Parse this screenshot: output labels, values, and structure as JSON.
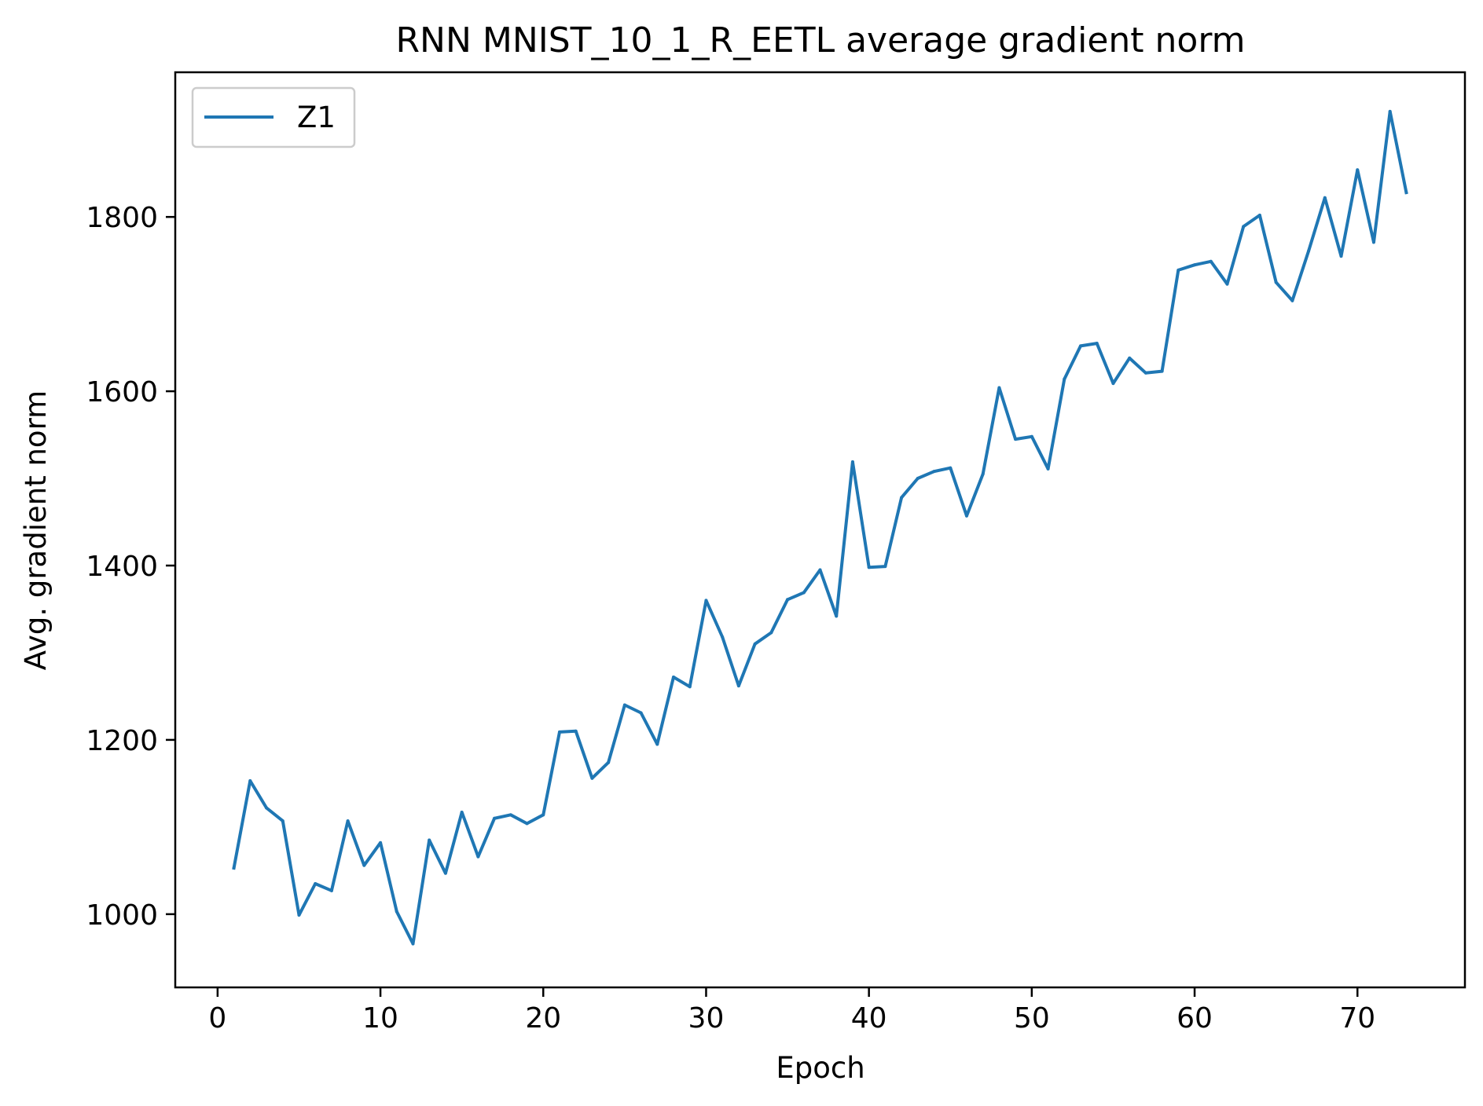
{
  "chart_data": {
    "type": "line",
    "title": "RNN MNIST_10_1_R_EETL average gradient norm",
    "xlabel": "Epoch",
    "ylabel": "Avg. gradient norm",
    "xlim": [
      -2.6,
      76.6
    ],
    "ylim": [
      916,
      1966
    ],
    "xticks": [
      0,
      10,
      20,
      30,
      40,
      50,
      60,
      70
    ],
    "xtick_labels": [
      "0",
      "10",
      "20",
      "30",
      "40",
      "50",
      "60",
      "70"
    ],
    "yticks": [
      1000,
      1200,
      1400,
      1600,
      1800
    ],
    "ytick_labels": [
      "1000",
      "1200",
      "1400",
      "1600",
      "1800"
    ],
    "grid": false,
    "legend_position": "top-left",
    "series": [
      {
        "name": "Z1",
        "color": "#1f77b4",
        "x": [
          1,
          2,
          3,
          4,
          5,
          6,
          7,
          8,
          9,
          10,
          11,
          12,
          13,
          14,
          15,
          16,
          17,
          18,
          19,
          20,
          21,
          22,
          23,
          24,
          25,
          26,
          27,
          28,
          29,
          30,
          31,
          32,
          33,
          34,
          35,
          36,
          37,
          38,
          39,
          40,
          41,
          42,
          43,
          44,
          45,
          46,
          47,
          48,
          49,
          50,
          51,
          52,
          53,
          54,
          55,
          56,
          57,
          58,
          59,
          60,
          61,
          62,
          63,
          64,
          65,
          66,
          67,
          68,
          69,
          70,
          71,
          72,
          73
        ],
        "y": [
          1053,
          1153,
          1122,
          1107,
          999,
          1035,
          1027,
          1107,
          1056,
          1082,
          1003,
          966,
          1085,
          1047,
          1117,
          1066,
          1110,
          1114,
          1104,
          1114,
          1209,
          1210,
          1156,
          1174,
          1240,
          1231,
          1195,
          1272,
          1261,
          1360,
          1318,
          1262,
          1310,
          1323,
          1361,
          1369,
          1395,
          1342,
          1519,
          1398,
          1399,
          1478,
          1500,
          1508,
          1512,
          1457,
          1505,
          1604,
          1545,
          1548,
          1511,
          1614,
          1652,
          1655,
          1609,
          1638,
          1621,
          1623,
          1739,
          1745,
          1749,
          1723,
          1789,
          1802,
          1725,
          1704,
          1761,
          1822,
          1755,
          1854,
          1771,
          1921,
          1828
        ]
      }
    ]
  }
}
